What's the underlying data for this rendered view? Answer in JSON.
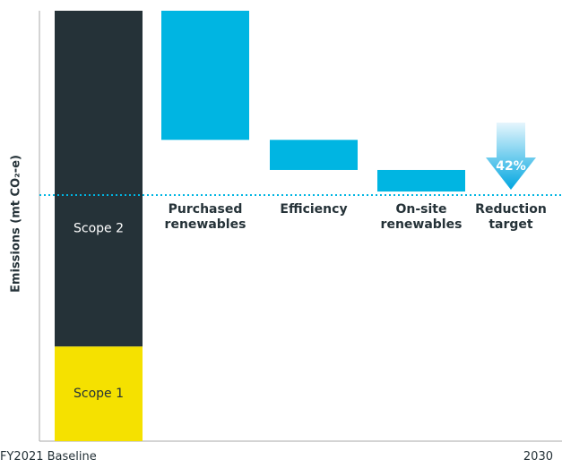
{
  "chart_data": {
    "type": "waterfall",
    "y_label": "Emissions (mt CO₂-e)",
    "x_labels": [
      "FY2021 Baseline",
      "2030"
    ],
    "ylim": [
      0,
      100
    ],
    "baseline": [
      {
        "name": "Scope 1",
        "color": "#f5e100",
        "value": 22
      },
      {
        "name": "Scope 2",
        "color": "#253238",
        "value": 78
      }
    ],
    "reductions": [
      {
        "name": "Purchased renewables",
        "value": 30
      },
      {
        "name": "Efficiency",
        "value": 7
      },
      {
        "name": "On-site renewables",
        "value": 5
      }
    ],
    "reduction_color": "#00b5e2",
    "target": {
      "name": "Reduction target",
      "value": 42,
      "value_label": "42%"
    }
  }
}
